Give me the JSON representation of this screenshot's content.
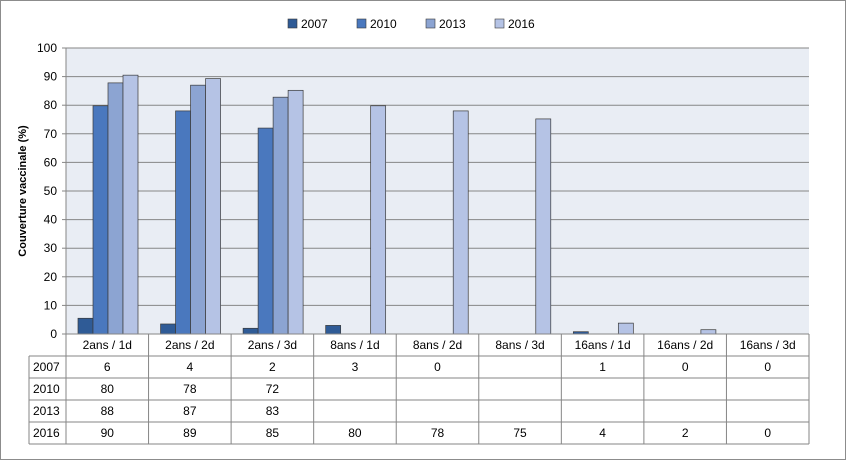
{
  "chart_data": {
    "type": "bar",
    "ylabel": "Couverture vaccinale  (%)",
    "ylim": [
      0,
      100
    ],
    "y_ticks": [
      0,
      10,
      20,
      30,
      40,
      50,
      60,
      70,
      80,
      90,
      100
    ],
    "grid": true,
    "legend_position": "top",
    "categories": [
      "2ans / 1d",
      "2ans / 2d",
      "2ans / 3d",
      "8ans / 1d",
      "8ans / 2d",
      "8ans / 3d",
      "16ans / 1d",
      "16ans / 2d",
      "16ans / 3d"
    ],
    "series": [
      {
        "name": "2007",
        "color": "#2f5b96",
        "values": [
          5.5,
          3.5,
          2,
          3,
          0,
          null,
          0.8,
          0,
          0
        ],
        "table_labels": [
          "6",
          "4",
          "2",
          "3",
          "0",
          "",
          "1",
          "0",
          "0"
        ]
      },
      {
        "name": "2010",
        "color": "#4a78be",
        "values": [
          79.8,
          78,
          72,
          null,
          null,
          null,
          null,
          null,
          null
        ],
        "table_labels": [
          "80",
          "78",
          "72",
          "",
          "",
          "",
          "",
          "",
          ""
        ]
      },
      {
        "name": "2013",
        "color": "#8ca4d2",
        "values": [
          87.8,
          87,
          82.8,
          null,
          null,
          null,
          null,
          null,
          null
        ],
        "table_labels": [
          "88",
          "87",
          "83",
          "",
          "",
          "",
          "",
          "",
          ""
        ]
      },
      {
        "name": "2016",
        "color": "#b5c3e5",
        "values": [
          90.5,
          89.3,
          85.2,
          79.8,
          78,
          75.2,
          3.8,
          1.5,
          0
        ],
        "table_labels": [
          "90",
          "89",
          "85",
          "80",
          "78",
          "75",
          "4",
          "2",
          "0"
        ]
      }
    ]
  }
}
